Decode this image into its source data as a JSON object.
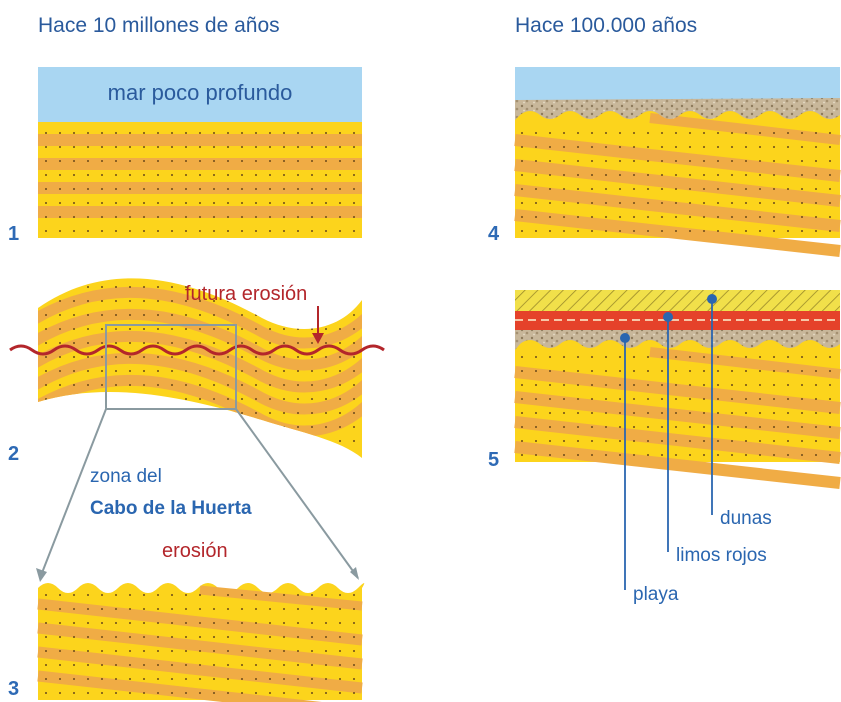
{
  "titles": {
    "left": "Hace 10 millones de años",
    "right": "Hace 100.000 años"
  },
  "panels": {
    "p1": {
      "number": "1",
      "sea_label": "mar poco profundo"
    },
    "p2": {
      "number": "2",
      "erosion_label": "futura erosión",
      "zone_line1": "zona del",
      "zone_line2": "Cabo de la Huerta"
    },
    "p3": {
      "number": "3",
      "erosion_label": "erosión"
    },
    "p4": {
      "number": "4"
    },
    "p5": {
      "number": "5",
      "labels": {
        "dunas": "dunas",
        "limos": "limos rojos",
        "playa": "playa"
      }
    }
  },
  "colors": {
    "yellow": "#fcd41c",
    "orange": "#f0ac45",
    "sea": "#a9d6f2",
    "gravel": "#c8b79a",
    "red_silt": "#e5422a",
    "dune": "#f1e04a",
    "wave": "#b3262b",
    "text_blue": "#2a5a9c"
  }
}
